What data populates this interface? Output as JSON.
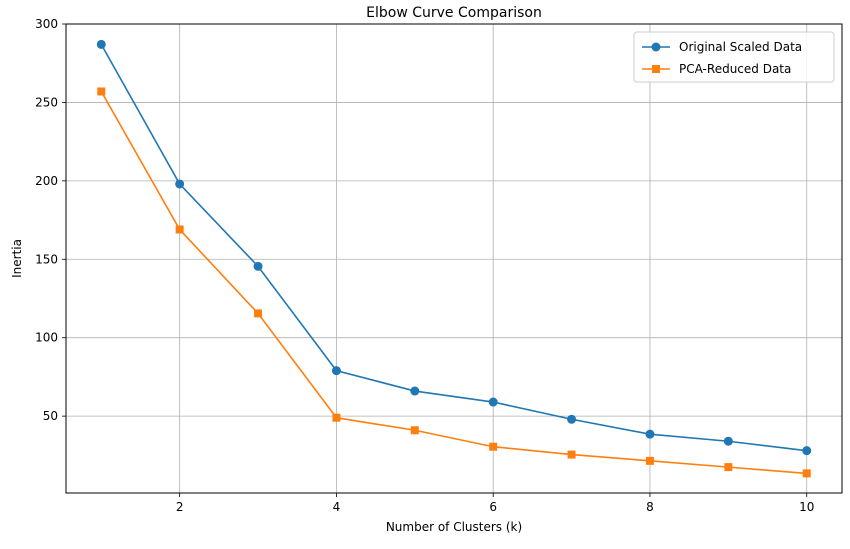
{
  "chart_data": {
    "type": "line",
    "title": "Elbow Curve Comparison",
    "xlabel": "Number of Clusters (k)",
    "ylabel": "Inertia",
    "x": [
      1,
      2,
      3,
      4,
      5,
      6,
      7,
      8,
      9,
      10
    ],
    "xlim": [
      0.55,
      10.45
    ],
    "ylim": [
      1,
      300
    ],
    "xticks": [
      2,
      4,
      6,
      8,
      10
    ],
    "yticks": [
      50,
      100,
      150,
      200,
      250,
      300
    ],
    "grid": true,
    "legend_position": "top-right",
    "series": [
      {
        "name": "Original Scaled Data",
        "marker": "circle",
        "color": "#1f77b4",
        "values": [
          287,
          198,
          145.5,
          79,
          66,
          59,
          48,
          38.5,
          34,
          28
        ]
      },
      {
        "name": "PCA-Reduced Data",
        "marker": "square",
        "color": "#ff7f0e",
        "values": [
          257,
          169,
          115.5,
          49,
          41,
          30.5,
          25.5,
          21.5,
          17.5,
          13.5
        ]
      }
    ]
  }
}
